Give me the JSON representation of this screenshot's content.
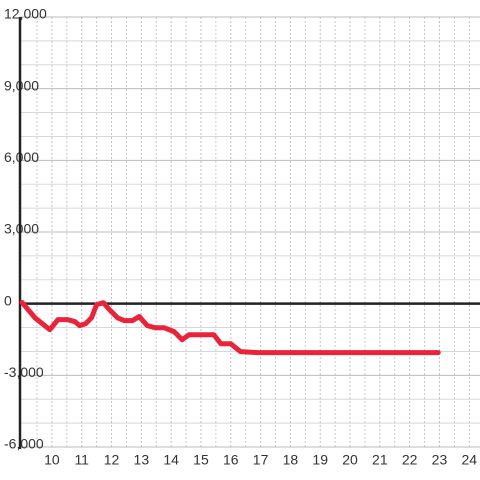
{
  "chart_data": {
    "type": "line",
    "x": [
      9.0,
      9.43,
      9.93,
      10.2,
      10.53,
      10.77,
      10.93,
      11.13,
      11.33,
      11.5,
      11.73,
      11.93,
      12.2,
      12.43,
      12.7,
      12.93,
      13.2,
      13.47,
      13.77,
      14.1,
      14.37,
      14.6,
      14.93,
      15.43,
      15.67,
      16.0,
      16.33,
      16.93,
      18.27,
      22.96
    ],
    "series": [
      {
        "color": "#e8233a",
        "values": [
          50,
          -590,
          -1090,
          -670,
          -670,
          -750,
          -920,
          -840,
          -590,
          -40,
          40,
          -250,
          -590,
          -710,
          -710,
          -540,
          -920,
          -1010,
          -1010,
          -1170,
          -1510,
          -1300,
          -1300,
          -1300,
          -1680,
          -1680,
          -2010,
          -2050,
          -2050,
          -2050
        ]
      }
    ],
    "xlim": [
      8.93,
      24.36
    ],
    "ylim": [
      -6000,
      12000
    ],
    "xticks": [
      10,
      11,
      12,
      13,
      14,
      15,
      16,
      17,
      18,
      19,
      20,
      21,
      22,
      23,
      24
    ],
    "yticks": [
      {
        "value": -6000,
        "label": "-6,000"
      },
      {
        "value": -3000,
        "label": "-3,000"
      },
      0,
      {
        "value": 3000,
        "label": "3,000"
      },
      {
        "value": 6000,
        "label": "6,000"
      },
      {
        "value": 9000,
        "label": "9,000"
      },
      {
        "value": 12000,
        "label": "12,000"
      }
    ],
    "yminorticks": [
      -5000,
      -4000,
      -2000,
      -1000,
      1000,
      2000,
      4000,
      5000,
      7000,
      8000,
      10000,
      11000
    ],
    "xminorticks": [
      9.5,
      10.5,
      11.5,
      12.5,
      13.5,
      14.5,
      15.5,
      16.5,
      17.5,
      18.5,
      19.5,
      20.5,
      21.5,
      22.5,
      23.5
    ],
    "grid": true
  }
}
